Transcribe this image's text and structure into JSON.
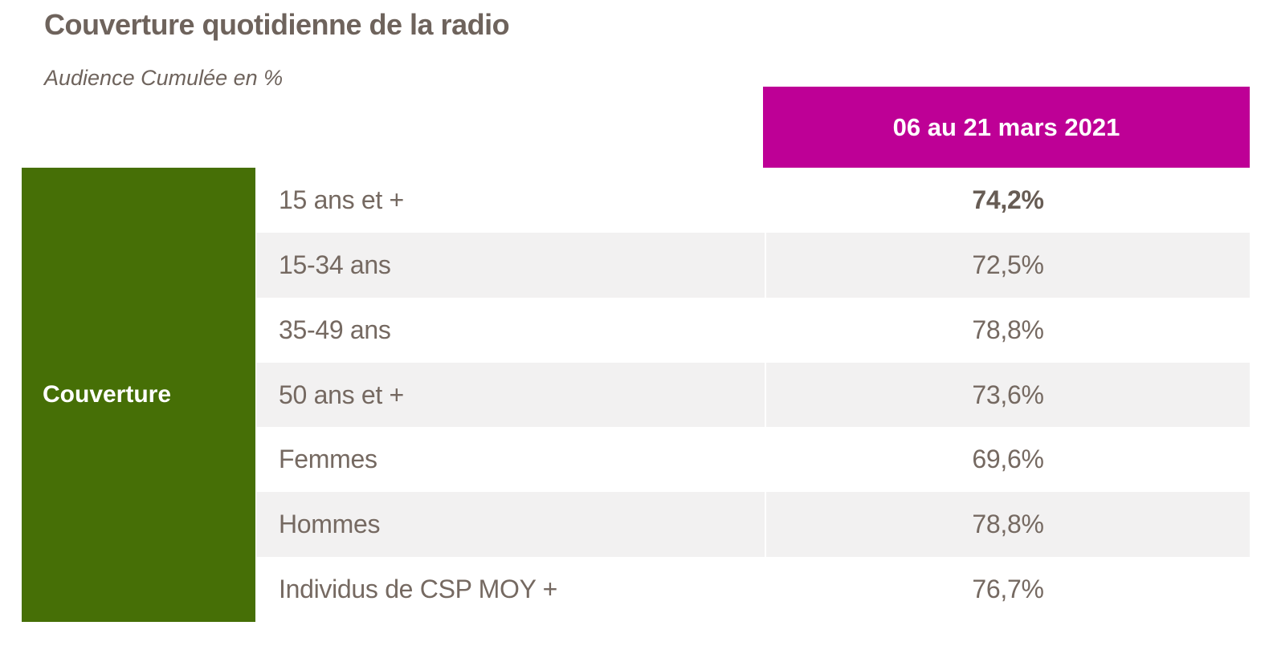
{
  "page": {
    "title": "Couverture quotidienne de la radio",
    "subtitle": "Audience Cumulée en %"
  },
  "table": {
    "period_header": "06 au 21 mars 2021",
    "row_group_label": "Couverture",
    "rows": [
      {
        "label": "15 ans et +",
        "value": "74,2%"
      },
      {
        "label": "15-34 ans",
        "value": "72,5%"
      },
      {
        "label": "35-49 ans",
        "value": "78,8%"
      },
      {
        "label": "50 ans et +",
        "value": "73,6%"
      },
      {
        "label": "Femmes",
        "value": "69,6%"
      },
      {
        "label": "Hommes",
        "value": "78,8%"
      },
      {
        "label": "Individus de CSP MOY +",
        "value": "76,7%"
      }
    ]
  },
  "colors": {
    "period_header_bg": "#BE0096",
    "group_label_bg": "#466F06",
    "row_alt_bg": "#F2F1F1",
    "text": "#6E635C"
  },
  "chart_data": {
    "type": "table",
    "title": "Couverture quotidienne de la radio",
    "subtitle": "Audience Cumulée en %",
    "column_header": "06 au 21 mars 2021",
    "row_group": "Couverture",
    "categories": [
      "15 ans et +",
      "15-34 ans",
      "35-49 ans",
      "50 ans et +",
      "Femmes",
      "Hommes",
      "Individus de CSP MOY +"
    ],
    "values": [
      74.2,
      72.5,
      78.8,
      73.6,
      69.6,
      78.8,
      76.7
    ],
    "unit": "%",
    "emphasized_row": "15 ans et +"
  }
}
